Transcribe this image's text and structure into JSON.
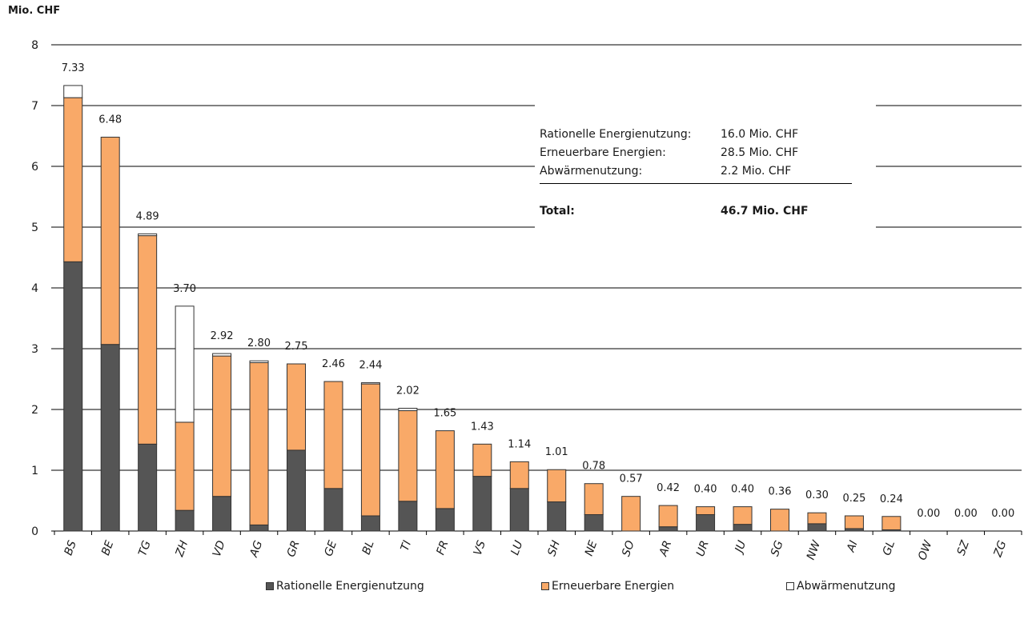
{
  "unit": "Mio. CHF",
  "summary": {
    "rows": [
      {
        "label": "Rationelle Energienutzung:",
        "value": "16.0 Mio. CHF"
      },
      {
        "label": "Erneuerbare Energien:",
        "value": "28.5  Mio. CHF"
      },
      {
        "label": "Abwärmenutzung:",
        "value": "2.2 Mio. CHF"
      }
    ],
    "total": {
      "label": "Total:",
      "value": "46.7 Mio. CHF"
    }
  },
  "colors": {
    "rationelle": "#555555",
    "erneuerbare": "#f9a968",
    "abwaerme": "#ffffff",
    "outline": "#333333",
    "grid": "#000000"
  },
  "chart_data": {
    "type": "bar",
    "stacked": true,
    "ylim": [
      0,
      8
    ],
    "yticks": [
      0,
      1,
      2,
      3,
      4,
      5,
      6,
      7,
      8
    ],
    "ylabel": "Mio. CHF",
    "grid": true,
    "legend_position": "bottom",
    "categories": [
      "BS",
      "BE",
      "TG",
      "ZH",
      "VD",
      "AG",
      "GR",
      "GE",
      "BL",
      "TI",
      "FR",
      "VS",
      "LU",
      "SH",
      "NE",
      "SO",
      "AR",
      "UR",
      "JU",
      "SG",
      "NW",
      "AI",
      "GL",
      "OW",
      "SZ",
      "ZG"
    ],
    "series": [
      {
        "name": "Rationelle Energienutzung",
        "color": "#555555",
        "values": [
          4.43,
          3.07,
          1.43,
          0.34,
          0.57,
          0.1,
          1.33,
          0.7,
          0.25,
          0.49,
          0.37,
          0.9,
          0.7,
          0.48,
          0.27,
          0.0,
          0.07,
          0.27,
          0.11,
          0.0,
          0.12,
          0.04,
          0.02,
          0,
          0,
          0
        ]
      },
      {
        "name": "Erneuerbare Energien",
        "color": "#f9a968",
        "values": [
          2.7,
          3.41,
          3.43,
          1.45,
          2.31,
          2.67,
          1.42,
          1.76,
          2.17,
          1.49,
          1.28,
          0.53,
          0.44,
          0.53,
          0.51,
          0.57,
          0.35,
          0.13,
          0.29,
          0.36,
          0.18,
          0.21,
          0.22,
          0,
          0,
          0
        ]
      },
      {
        "name": "Abwärmenutzung",
        "color": "#ffffff",
        "values": [
          0.2,
          0.0,
          0.03,
          1.91,
          0.04,
          0.03,
          0.0,
          0.0,
          0.02,
          0.04,
          0.0,
          0.0,
          0.0,
          0.0,
          0.0,
          0.0,
          0.0,
          0.0,
          0.0,
          0.0,
          0.0,
          0.0,
          0.0,
          0,
          0,
          0
        ]
      }
    ],
    "totals": [
      "7.33",
      "6.48",
      "4.89",
      "3.70",
      "2.92",
      "2.80",
      "2.75",
      "2.46",
      "2.44",
      "2.02",
      "1.65",
      "1.43",
      "1.14",
      "1.01",
      "0.78",
      "0.57",
      "0.42",
      "0.40",
      "0.40",
      "0.36",
      "0.30",
      "0.25",
      "0.24",
      "0.00",
      "0.00",
      "0.00"
    ]
  }
}
